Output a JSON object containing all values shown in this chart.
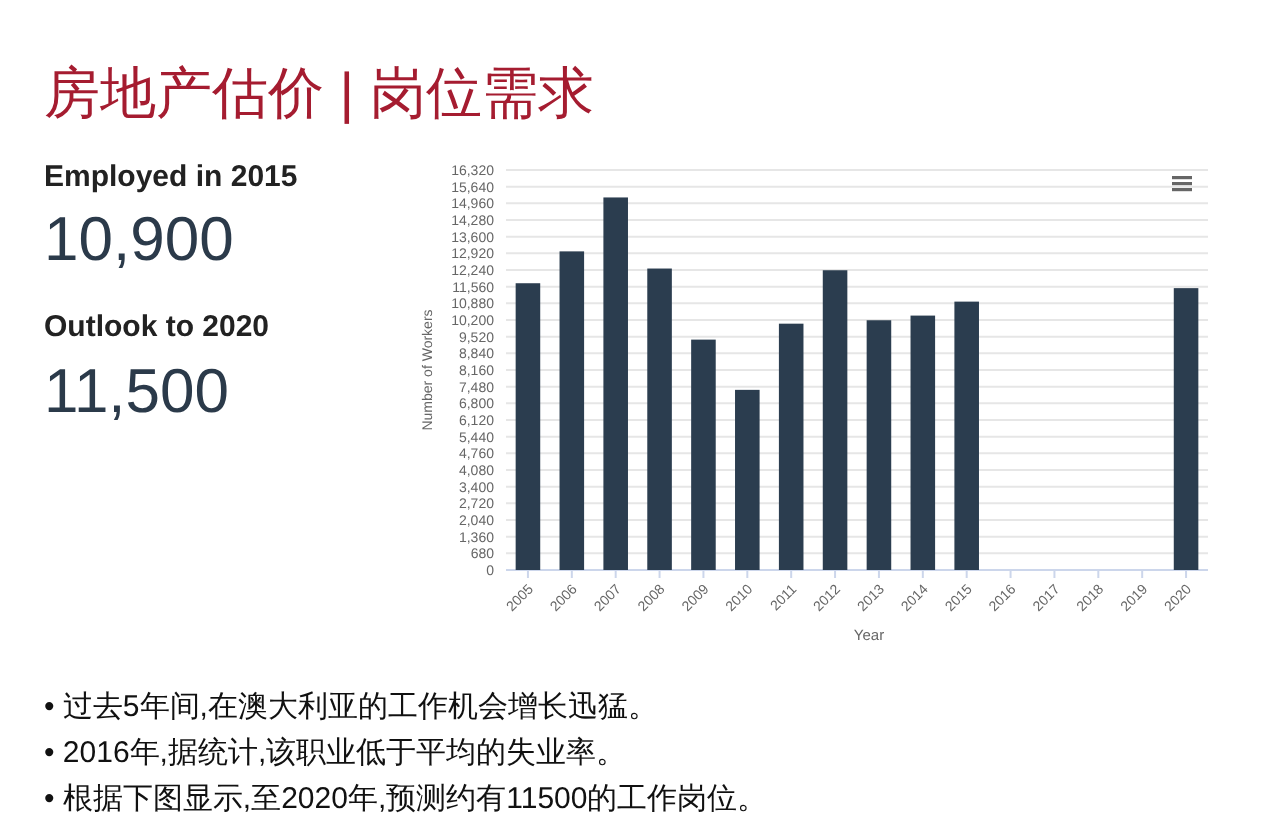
{
  "chart_data": {
    "type": "bar",
    "title": "房地产估价 | 岗位需求",
    "xlabel": "Year",
    "ylabel": "Number of Workers",
    "categories": [
      "2005",
      "2006",
      "2007",
      "2008",
      "2009",
      "2010",
      "2011",
      "2012",
      "2013",
      "2014",
      "2015",
      "2016",
      "2017",
      "2018",
      "2019",
      "2020"
    ],
    "values": [
      11700,
      13000,
      15200,
      12300,
      9400,
      7350,
      10050,
      12230,
      10190,
      10380,
      10950,
      null,
      null,
      null,
      null,
      11500
    ],
    "color": "#2b3d4f",
    "ylim": [
      0,
      16320
    ],
    "yticks": [
      {
        "value": 0,
        "label": "0"
      },
      {
        "value": 680,
        "label": "680"
      },
      {
        "value": 1360,
        "label": "1,360"
      },
      {
        "value": 2040,
        "label": "2,040"
      },
      {
        "value": 2720,
        "label": "2,720"
      },
      {
        "value": 3400,
        "label": "3,400"
      },
      {
        "value": 4080,
        "label": "4,080"
      },
      {
        "value": 4760,
        "label": "4,760"
      },
      {
        "value": 5440,
        "label": "5,440"
      },
      {
        "value": 6120,
        "label": "6,120"
      },
      {
        "value": 6800,
        "label": "6,800"
      },
      {
        "value": 7480,
        "label": "7,480"
      },
      {
        "value": 8160,
        "label": "8,160"
      },
      {
        "value": 8840,
        "label": "8,840"
      },
      {
        "value": 9520,
        "label": "9,520"
      },
      {
        "value": 10200,
        "label": "10,200"
      },
      {
        "value": 10880,
        "label": "10,880"
      },
      {
        "value": 11560,
        "label": "11,560"
      },
      {
        "value": 12240,
        "label": "12,240"
      },
      {
        "value": 12920,
        "label": "12,920"
      },
      {
        "value": 13600,
        "label": "13,600"
      },
      {
        "value": 14280,
        "label": "14,280"
      },
      {
        "value": 14960,
        "label": "14,960"
      },
      {
        "value": 15640,
        "label": "15,640"
      },
      {
        "value": 16320,
        "label": "16,320"
      }
    ],
    "grid": "y",
    "annotations": [
      "Employed in 2015",
      "10,900",
      "Outlook to 2020",
      "11,500",
      "• 过去5年间,在澳大利亚的工作机会增长迅猛。",
      "• 2016年,据统计,该职业低于平均的失业率。",
      "• 根据下图显示,至2020年,预测约有11500的工作岗位。"
    ]
  }
}
